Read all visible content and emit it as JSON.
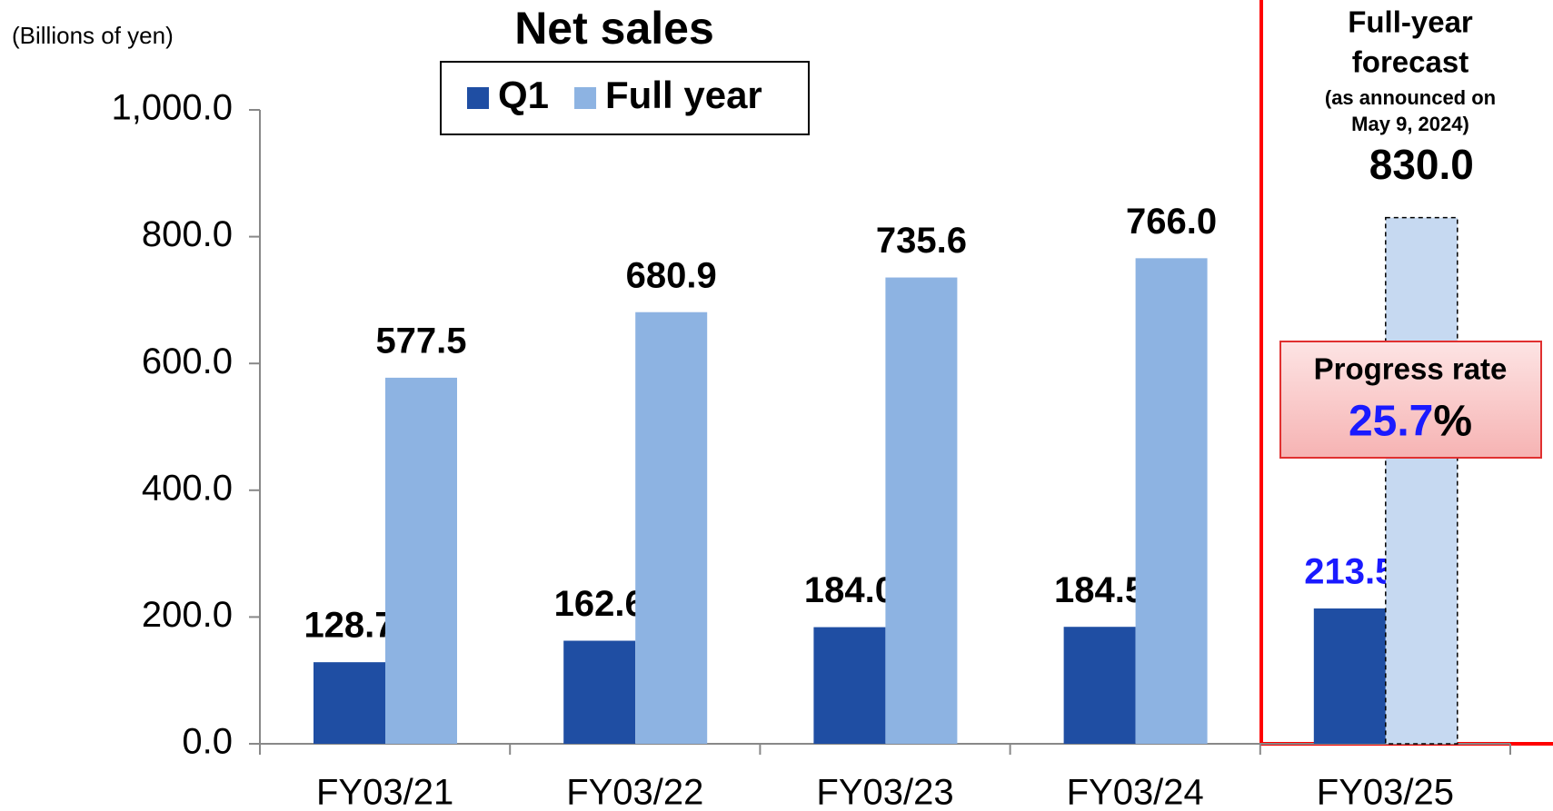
{
  "chart_data": {
    "type": "bar",
    "title": "Net sales",
    "unit_label": "(Billions of yen)",
    "categories": [
      "FY03/21",
      "FY03/22",
      "FY03/23",
      "FY03/24",
      "FY03/25"
    ],
    "series": [
      {
        "name": "Q1",
        "color": "#1f4ea3",
        "values": [
          128.7,
          162.6,
          184.0,
          184.5,
          213.5
        ],
        "value_labels": [
          "128.7",
          "162.6",
          "184.0",
          "184.5",
          "213.5"
        ]
      },
      {
        "name": "Full year",
        "color": "#8db3e2",
        "values": [
          577.5,
          680.9,
          735.6,
          766.0,
          830.0
        ],
        "value_labels": [
          "577.5",
          "680.9",
          "735.6",
          "766.0",
          "830.0"
        ]
      }
    ],
    "ylim": [
      0,
      1000
    ],
    "yticks": [
      {
        "value": 0,
        "label": "0.0"
      },
      {
        "value": 200,
        "label": "200.0"
      },
      {
        "value": 400,
        "label": "400.0"
      },
      {
        "value": 600,
        "label": "600.0"
      },
      {
        "value": 800,
        "label": "800.0"
      },
      {
        "value": 1000,
        "label": "1,000.0"
      }
    ],
    "grid": false,
    "legend": "top",
    "forecast": {
      "title": [
        "Full-year",
        "forecast"
      ],
      "note": [
        "(as announced on",
        "May 9, 2024)"
      ],
      "index": 4,
      "color": "#c6d9f1",
      "border": "#ff0000",
      "label_color": "#1a1aff"
    },
    "progress_rate": {
      "label": "Progress rate",
      "value": 25.7,
      "unit": "%"
    }
  }
}
